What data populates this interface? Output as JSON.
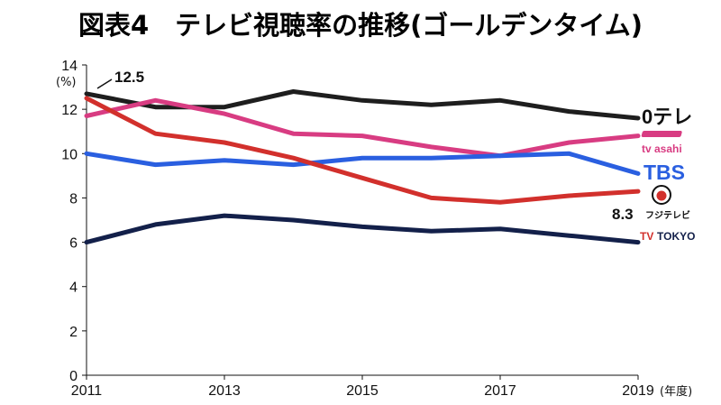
{
  "chart_data": {
    "type": "line",
    "title": "図表4　テレビ視聴率の推移(ゴールデンタイム)",
    "ylabel": "(%)",
    "xlabel": "(年度)",
    "ylim": [
      0,
      14
    ],
    "yticks": [
      0,
      2,
      4,
      6,
      8,
      10,
      12,
      14
    ],
    "xlim": [
      2011,
      2019
    ],
    "xticks": [
      2011,
      2013,
      2015,
      2017,
      2019
    ],
    "grid": false,
    "legend": "right-end logos",
    "series": [
      {
        "name": "日テレ",
        "color": "#1e1e1e",
        "x": [
          2011,
          2012,
          2013,
          2014,
          2015,
          2016,
          2017,
          2018,
          2019
        ],
        "values": [
          12.7,
          12.1,
          12.1,
          12.8,
          12.4,
          12.2,
          12.4,
          11.9,
          11.6
        ]
      },
      {
        "name": "tv asahi",
        "color": "#d83c82",
        "x": [
          2011,
          2012,
          2013,
          2014,
          2015,
          2016,
          2017,
          2018,
          2019
        ],
        "values": [
          11.7,
          12.4,
          11.8,
          10.9,
          10.8,
          10.3,
          9.9,
          10.5,
          10.8
        ]
      },
      {
        "name": "TBS",
        "color": "#2a5fe0",
        "x": [
          2011,
          2012,
          2013,
          2014,
          2015,
          2016,
          2017,
          2018,
          2019
        ],
        "values": [
          10.0,
          9.5,
          9.7,
          9.5,
          9.8,
          9.8,
          9.9,
          10.0,
          9.1
        ]
      },
      {
        "name": "フジテレビ",
        "color": "#d2302c",
        "x": [
          2011,
          2012,
          2013,
          2014,
          2015,
          2016,
          2017,
          2018,
          2019
        ],
        "values": [
          12.5,
          10.9,
          10.5,
          9.8,
          8.9,
          8.0,
          7.8,
          8.1,
          8.3
        ]
      },
      {
        "name": "TV TOKYO",
        "color": "#13204a",
        "x": [
          2011,
          2012,
          2013,
          2014,
          2015,
          2016,
          2017,
          2018,
          2019
        ],
        "values": [
          6.0,
          6.8,
          7.2,
          7.0,
          6.7,
          6.5,
          6.6,
          6.3,
          6.0
        ]
      }
    ],
    "annotations": [
      {
        "text": "12.5",
        "series": "フジテレビ",
        "x": 2011
      },
      {
        "text": "8.3",
        "series": "フジテレビ",
        "x": 2019
      }
    ]
  },
  "logos": {
    "ntv": "0テレ",
    "asahi": "tv asahi",
    "tbs": "TBS",
    "fuji": "フジテレビ",
    "tvtokyo_tv": "TV",
    "tvtokyo_text": "TOKYO"
  }
}
